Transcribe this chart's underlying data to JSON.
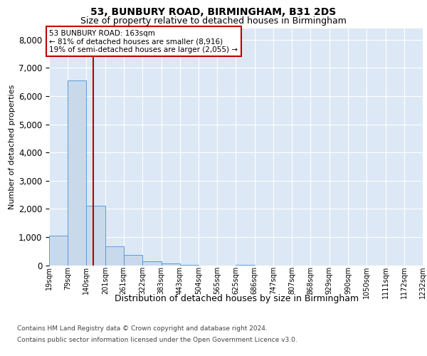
{
  "title": "53, BUNBURY ROAD, BIRMINGHAM, B31 2DS",
  "subtitle": "Size of property relative to detached houses in Birmingham",
  "xlabel": "Distribution of detached houses by size in Birmingham",
  "ylabel": "Number of detached properties",
  "property_label": "53 BUNBURY ROAD: 163sqm",
  "pct_smaller": 81,
  "n_smaller": 8916,
  "pct_larger_semi": 19,
  "n_larger_semi": 2055,
  "footnote1": "Contains HM Land Registry data © Crown copyright and database right 2024.",
  "footnote2": "Contains public sector information licensed under the Open Government Licence v3.0.",
  "bin_edges": [
    19,
    79,
    140,
    201,
    261,
    322,
    383,
    443,
    504,
    565,
    625,
    686,
    747,
    807,
    868,
    929,
    990,
    1050,
    1111,
    1172,
    1232
  ],
  "bar_heights": [
    1050,
    6550,
    2100,
    680,
    375,
    145,
    55,
    5,
    0,
    0,
    5,
    0,
    0,
    0,
    0,
    0,
    0,
    0,
    0,
    0
  ],
  "bar_color": "#c9d9ec",
  "bar_edge_color": "#5b9bd5",
  "vline_x": 163,
  "vline_color": "#c00000",
  "box_edge_color": "#c00000",
  "ylim_max": 8400,
  "yticks": [
    0,
    1000,
    2000,
    3000,
    4000,
    5000,
    6000,
    7000,
    8000
  ],
  "bg_color": "#dce8f5",
  "title_fontsize": 10,
  "subtitle_fontsize": 9,
  "ylabel_fontsize": 8,
  "tick_fontsize": 8.5,
  "xtick_fontsize": 7,
  "annot_fontsize": 7.5,
  "xlabel_fontsize": 9,
  "footnote_fontsize": 6.5
}
